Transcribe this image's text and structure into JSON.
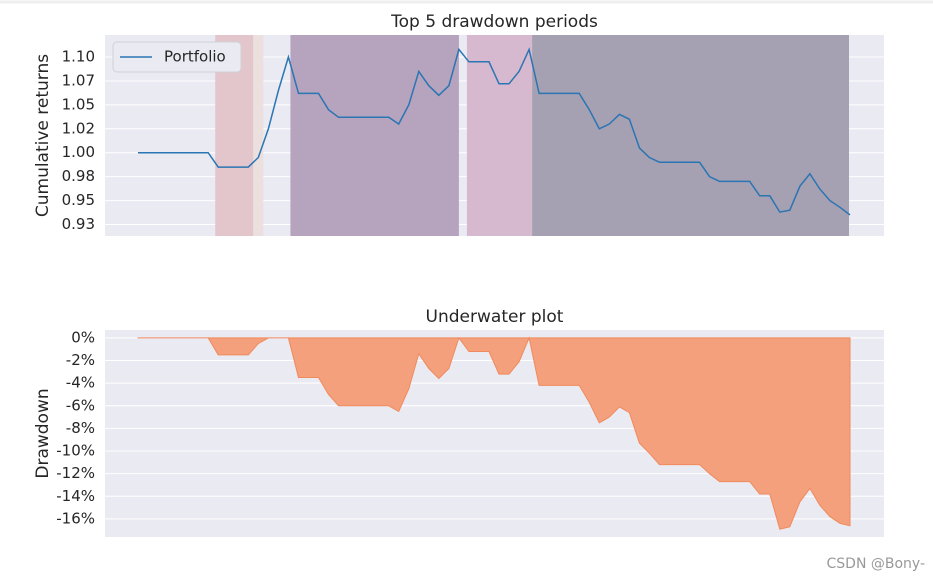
{
  "chart_data": [
    {
      "type": "line",
      "title": "Top 5 drawdown periods",
      "ylabel": "Cumulative returns",
      "series": [
        {
          "name": "Portfolio",
          "color": "#2a75b3",
          "values": [
            1.0,
            1.0,
            1.0,
            1.0,
            1.0,
            1.0,
            1.0,
            1.0,
            0.985,
            0.985,
            0.985,
            0.985,
            0.995,
            1.025,
            1.065,
            1.1,
            1.062,
            1.062,
            1.062,
            1.045,
            1.037,
            1.037,
            1.037,
            1.037,
            1.037,
            1.037,
            1.03,
            1.05,
            1.085,
            1.07,
            1.06,
            1.07,
            1.108,
            1.095,
            1.095,
            1.095,
            1.072,
            1.072,
            1.085,
            1.108,
            1.062,
            1.062,
            1.062,
            1.062,
            1.062,
            1.045,
            1.025,
            1.03,
            1.04,
            1.035,
            1.005,
            0.995,
            0.99,
            0.99,
            0.99,
            0.99,
            0.99,
            0.975,
            0.97,
            0.97,
            0.97,
            0.97,
            0.955,
            0.955,
            0.938,
            0.94,
            0.965,
            0.978,
            0.962,
            0.95,
            0.943,
            0.935
          ]
        }
      ],
      "spans": [
        {
          "start": 7.7,
          "end": 11.5,
          "color": "#e3c6cc"
        },
        {
          "start": 11.5,
          "end": 12.5,
          "color": "#ece0df"
        },
        {
          "start": 15.2,
          "end": 32,
          "color": "#b6a3bd"
        },
        {
          "start": 32.8,
          "end": 39.3,
          "color": "#d6b9cf"
        },
        {
          "start": 39.3,
          "end": 70.9,
          "color": "#a5a0b2"
        }
      ],
      "ylim": [
        0.913,
        1.123
      ],
      "yticks": [
        {
          "value": 0.925,
          "label": "0.93"
        },
        {
          "value": 0.95,
          "label": "0.95"
        },
        {
          "value": 0.975,
          "label": "0.98"
        },
        {
          "value": 1.0,
          "label": "1.00"
        },
        {
          "value": 1.025,
          "label": "1.02"
        },
        {
          "value": 1.05,
          "label": "1.05"
        },
        {
          "value": 1.075,
          "label": "1.07"
        },
        {
          "value": 1.1,
          "label": "1.10"
        }
      ],
      "grid": true,
      "legend": "upper left"
    },
    {
      "type": "area",
      "title": "Underwater plot",
      "ylabel": "Drawdown",
      "series": [
        {
          "name": "Drawdown",
          "color": "#f4a07c",
          "values": [
            0,
            0,
            0,
            0,
            0,
            0,
            0,
            0,
            -1.5,
            -1.5,
            -1.5,
            -1.5,
            -0.5,
            0,
            0,
            0,
            -3.5,
            -3.5,
            -3.5,
            -5,
            -6,
            -6,
            -6,
            -6,
            -6,
            -6,
            -6.5,
            -4.5,
            -1.4,
            -2.7,
            -3.6,
            -2.7,
            0,
            -1.2,
            -1.2,
            -1.2,
            -3.2,
            -3.2,
            -2.1,
            0,
            -4.2,
            -4.2,
            -4.2,
            -4.2,
            -4.2,
            -5.7,
            -7.5,
            -7,
            -6.1,
            -6.6,
            -9.3,
            -10.2,
            -11.2,
            -11.2,
            -11.2,
            -11.2,
            -11.2,
            -12,
            -12.7,
            -12.7,
            -12.7,
            -12.7,
            -13.8,
            -13.8,
            -16.9,
            -16.7,
            -14.5,
            -13.3,
            -14.8,
            -15.8,
            -16.4,
            -16.6
          ]
        }
      ],
      "ylim": [
        -17.6,
        0.7
      ],
      "yticks": [
        {
          "value": -16,
          "label": "-16%"
        },
        {
          "value": -14,
          "label": "-14%"
        },
        {
          "value": -12,
          "label": "-12%"
        },
        {
          "value": -10,
          "label": "-10%"
        },
        {
          "value": -8,
          "label": "-8%"
        },
        {
          "value": -6,
          "label": "-6%"
        },
        {
          "value": -4,
          "label": "-4%"
        },
        {
          "value": -2,
          "label": "-2%"
        },
        {
          "value": 0,
          "label": "0%"
        }
      ],
      "grid": true
    }
  ],
  "watermark": "CSDN @Bony-"
}
